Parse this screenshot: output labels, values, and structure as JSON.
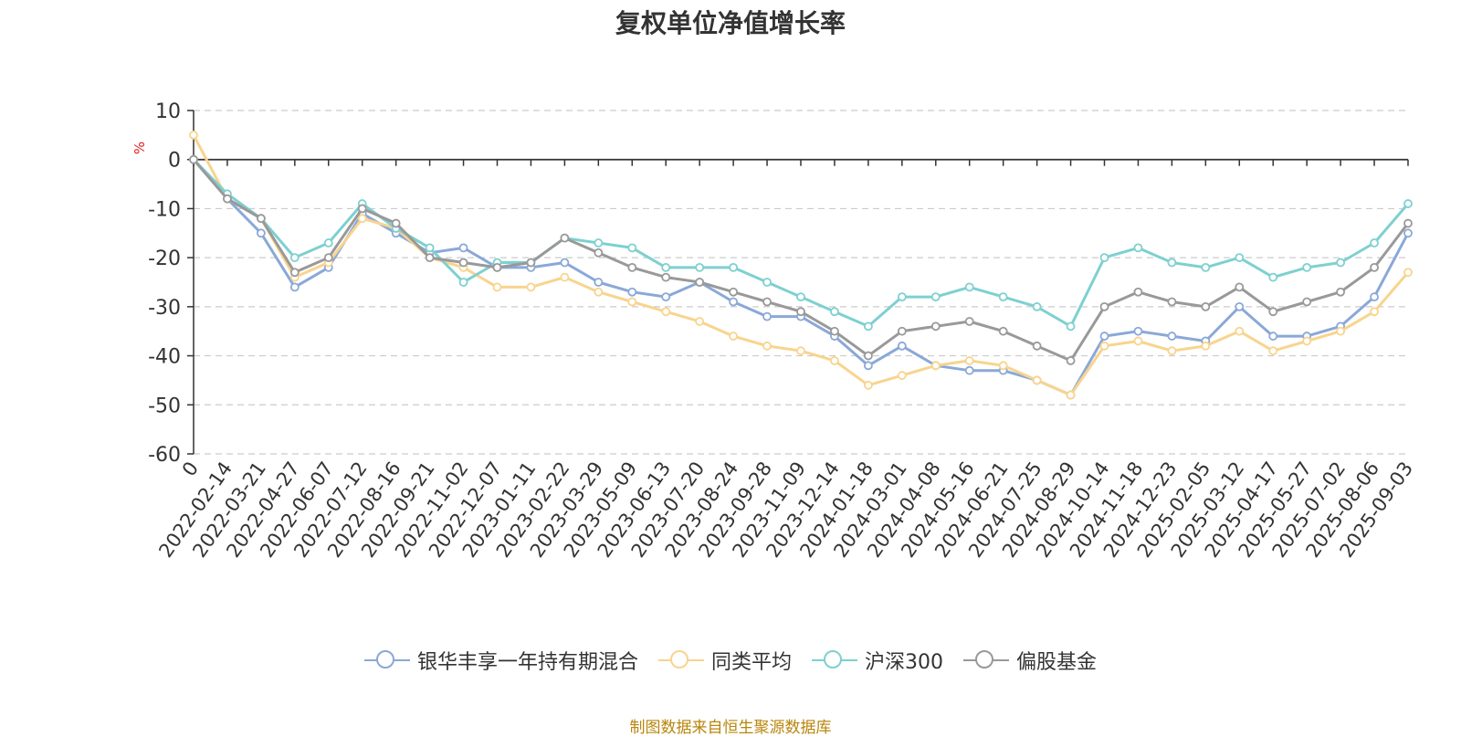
{
  "chart_data": {
    "type": "line",
    "title": "复权单位净值增长率",
    "ylabel": "%",
    "ylim": [
      -60,
      10
    ],
    "yticks": [
      10,
      0,
      -10,
      -20,
      -30,
      -40,
      -50,
      -60
    ],
    "grid": true,
    "legend_position": "bottom",
    "x_tick_labels": [
      "0",
      "2022-02-14",
      "2022-03-21",
      "2022-04-27",
      "2022-06-07",
      "2022-07-12",
      "2022-08-16",
      "2022-09-21",
      "2022-11-02",
      "2022-12-07",
      "2023-01-11",
      "2023-02-22",
      "2023-03-29",
      "2023-05-09",
      "2023-06-13",
      "2023-07-20",
      "2023-08-24",
      "2023-09-28",
      "2023-11-09",
      "2023-12-14",
      "2024-01-18",
      "2024-03-01",
      "2024-04-08",
      "2024-05-16",
      "2024-06-21",
      "2024-07-25",
      "2024-08-29",
      "2024-10-14",
      "2024-11-18",
      "2024-12-23",
      "2025-02-05",
      "2025-03-12",
      "2025-04-17",
      "2025-05-27",
      "2025-07-02",
      "2025-08-06",
      "2025-09-03"
    ],
    "series": [
      {
        "name": "银华丰享一年持有期混合",
        "color": "#8aa8d8",
        "values": [
          0,
          -8,
          -15,
          -26,
          -22,
          -11,
          -15,
          -19,
          -18,
          -22,
          -22,
          -21,
          -25,
          -27,
          -28,
          -25,
          -29,
          -32,
          -32,
          -36,
          -42,
          -38,
          -42,
          -43,
          -43,
          -45,
          -48,
          -36,
          -35,
          -36,
          -37,
          -30,
          -36,
          -36,
          -34,
          -28,
          -15
        ]
      },
      {
        "name": "同类平均",
        "color": "#f8d48e",
        "values": [
          5,
          -8,
          -12,
          -24,
          -21,
          -12,
          -14,
          -20,
          -22,
          -26,
          -26,
          -24,
          -27,
          -29,
          -31,
          -33,
          -36,
          -38,
          -39,
          -41,
          -46,
          -44,
          -42,
          -41,
          -42,
          -45,
          -48,
          -38,
          -37,
          -39,
          -38,
          -35,
          -39,
          -37,
          -35,
          -31,
          -23
        ]
      },
      {
        "name": "沪深300",
        "color": "#7ed0d0",
        "values": [
          0,
          -7,
          -12,
          -20,
          -17,
          -9,
          -14,
          -18,
          -25,
          -21,
          -21,
          -16,
          -17,
          -18,
          -22,
          -22,
          -22,
          -25,
          -28,
          -31,
          -34,
          -28,
          -28,
          -26,
          -28,
          -30,
          -34,
          -20,
          -18,
          -21,
          -22,
          -20,
          -24,
          -22,
          -21,
          -17,
          -9
        ]
      },
      {
        "name": "偏股基金",
        "color": "#999999",
        "values": [
          0,
          -8,
          -12,
          -23,
          -20,
          -10,
          -13,
          -20,
          -21,
          -22,
          -21,
          -16,
          -19,
          -22,
          -24,
          -25,
          -27,
          -29,
          -31,
          -35,
          -40,
          -35,
          -34,
          -33,
          -35,
          -38,
          -41,
          -30,
          -27,
          -29,
          -30,
          -26,
          -31,
          -29,
          -27,
          -22,
          -13
        ]
      }
    ]
  },
  "footer": {
    "source": "制图数据来自恒生聚源数据库"
  }
}
